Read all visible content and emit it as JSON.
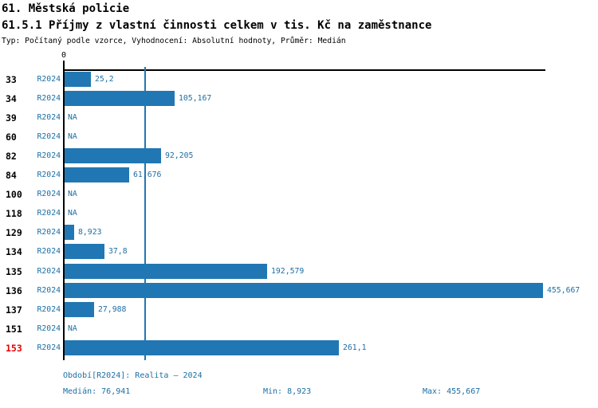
{
  "header": {
    "title": "61. Městská policie",
    "subtitle": "61.5.1 Příjmy z vlastní činnosti celkem v tis. Kč na zaměstnance",
    "meta": "Typ: Počítaný podle vzorce, Vyhodnocení: Absolutní hodnoty, Průměr: Medián"
  },
  "chart_data": {
    "type": "bar",
    "orientation": "horizontal",
    "title": "61.5.1 Příjmy z vlastní činnosti celkem v tis. Kč na zaměstnance",
    "unit": "tis. Kč na zaměstnance",
    "x_axis": {
      "zero_label": "0",
      "min": 0,
      "max": 455.667,
      "grid": false
    },
    "median_value": 76.941,
    "series_label": "R2024",
    "legend_position": "none",
    "categories": [
      "33",
      "34",
      "39",
      "60",
      "82",
      "84",
      "100",
      "118",
      "129",
      "134",
      "135",
      "136",
      "137",
      "151",
      "153"
    ],
    "rows": [
      {
        "id": "33",
        "period": "R2024",
        "value": 25.2,
        "display": "25,2",
        "highlight": false
      },
      {
        "id": "34",
        "period": "R2024",
        "value": 105.167,
        "display": "105,167",
        "highlight": false
      },
      {
        "id": "39",
        "period": "R2024",
        "value": null,
        "display": "NA",
        "highlight": false
      },
      {
        "id": "60",
        "period": "R2024",
        "value": null,
        "display": "NA",
        "highlight": false
      },
      {
        "id": "82",
        "period": "R2024",
        "value": 92.205,
        "display": "92,205",
        "highlight": false
      },
      {
        "id": "84",
        "period": "R2024",
        "value": 61.676,
        "display": "61,676",
        "highlight": false
      },
      {
        "id": "100",
        "period": "R2024",
        "value": null,
        "display": "NA",
        "highlight": false
      },
      {
        "id": "118",
        "period": "R2024",
        "value": null,
        "display": "NA",
        "highlight": false
      },
      {
        "id": "129",
        "period": "R2024",
        "value": 8.923,
        "display": "8,923",
        "highlight": false
      },
      {
        "id": "134",
        "period": "R2024",
        "value": 37.8,
        "display": "37,8",
        "highlight": false
      },
      {
        "id": "135",
        "period": "R2024",
        "value": 192.579,
        "display": "192,579",
        "highlight": false
      },
      {
        "id": "136",
        "period": "R2024",
        "value": 455.667,
        "display": "455,667",
        "highlight": false
      },
      {
        "id": "137",
        "period": "R2024",
        "value": 27.988,
        "display": "27,988",
        "highlight": false
      },
      {
        "id": "151",
        "period": "R2024",
        "value": null,
        "display": "NA",
        "highlight": false
      },
      {
        "id": "153",
        "period": "R2024",
        "value": 261.1,
        "display": "261,1",
        "highlight": true
      }
    ],
    "colors": {
      "bar": "#2177B3",
      "median_line": "#2177B3",
      "text_blue": "#1C6EA4",
      "highlight_red": "#E60000",
      "axis_black": "#000000"
    }
  },
  "footer": {
    "period_line": "Období[R2024]: Realita – 2024",
    "median": "Medián: 76,941",
    "min": "Min: 8,923",
    "max": "Max: 455,667"
  }
}
